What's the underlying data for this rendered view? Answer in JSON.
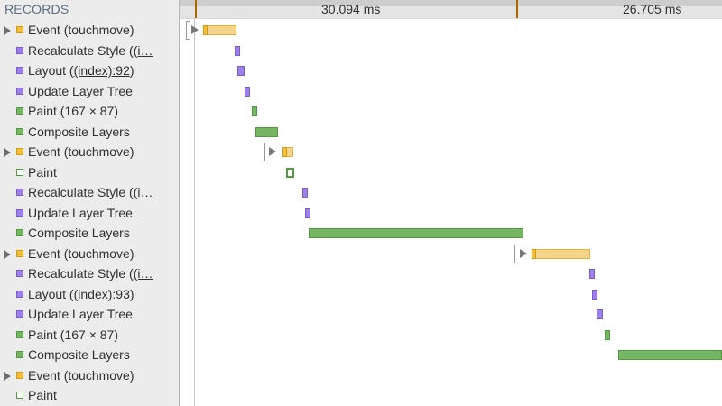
{
  "sidebar": {
    "title": "RECORDS",
    "records": [
      {
        "pre": "Event (touchmove)",
        "link": "",
        "post": "",
        "type": "event",
        "expandable": true
      },
      {
        "pre": "Recalculate Style (",
        "link": "(i…",
        "post": "",
        "type": "rendering",
        "expandable": false
      },
      {
        "pre": "Layout (",
        "link": "(index):92",
        "post": ")",
        "type": "rendering",
        "expandable": false
      },
      {
        "pre": "Update Layer Tree",
        "link": "",
        "post": "",
        "type": "rendering",
        "expandable": false
      },
      {
        "pre": "Paint (167 × 87)",
        "link": "",
        "post": "",
        "type": "painting",
        "expandable": false
      },
      {
        "pre": "Composite Layers",
        "link": "",
        "post": "",
        "type": "painting",
        "expandable": false
      },
      {
        "pre": "Event (touchmove)",
        "link": "",
        "post": "",
        "type": "event",
        "expandable": true
      },
      {
        "pre": "Paint",
        "link": "",
        "post": "",
        "type": "painting-hollow",
        "expandable": false
      },
      {
        "pre": "Recalculate Style (",
        "link": "(i…",
        "post": "",
        "type": "rendering",
        "expandable": false
      },
      {
        "pre": "Update Layer Tree",
        "link": "",
        "post": "",
        "type": "rendering",
        "expandable": false
      },
      {
        "pre": "Composite Layers",
        "link": "",
        "post": "",
        "type": "painting",
        "expandable": false
      },
      {
        "pre": "Event (touchmove)",
        "link": "",
        "post": "",
        "type": "event",
        "expandable": true
      },
      {
        "pre": "Recalculate Style (",
        "link": "(i…",
        "post": "",
        "type": "rendering",
        "expandable": false
      },
      {
        "pre": "Layout (",
        "link": "(index):93",
        "post": ")",
        "type": "rendering",
        "expandable": false
      },
      {
        "pre": "Update Layer Tree",
        "link": "",
        "post": "",
        "type": "rendering",
        "expandable": false
      },
      {
        "pre": "Paint (167 × 87)",
        "link": "",
        "post": "",
        "type": "painting",
        "expandable": false
      },
      {
        "pre": "Composite Layers",
        "link": "",
        "post": "",
        "type": "painting",
        "expandable": false
      },
      {
        "pre": "Event (touchmove)",
        "link": "",
        "post": "",
        "type": "event",
        "expandable": true
      },
      {
        "pre": "Paint",
        "link": "",
        "post": "",
        "type": "painting-hollow",
        "expandable": false
      }
    ]
  },
  "timeline": {
    "frames": [
      {
        "duration": "30.094 ms"
      },
      {
        "duration": "26.705 ms"
      }
    ]
  },
  "colors": {
    "event": "#f0c040",
    "rendering": "#9d7fe8",
    "painting": "#75b563",
    "frame_marker": "#a86a00"
  }
}
